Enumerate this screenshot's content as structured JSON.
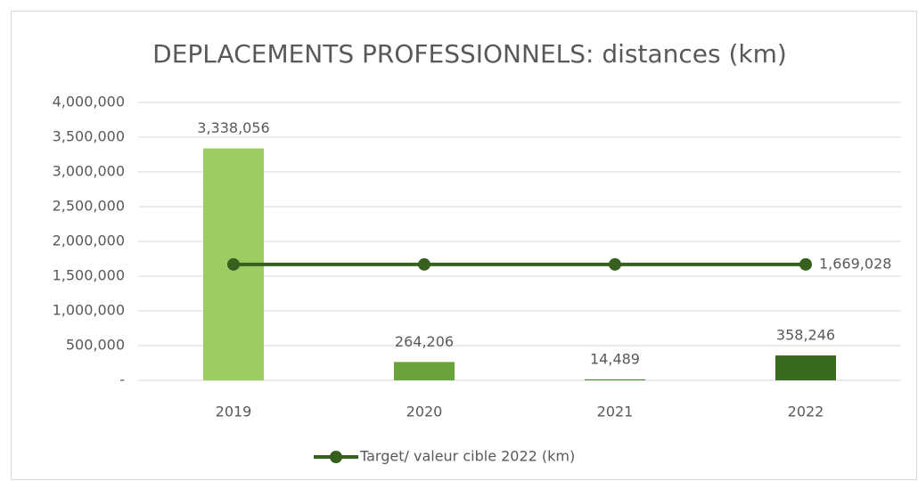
{
  "chart_data": {
    "type": "bar",
    "title": "DEPLACEMENTS PROFESSIONNELS: distances (km)",
    "categories": [
      "2019",
      "2020",
      "2021",
      "2022"
    ],
    "values": [
      3338056,
      264206,
      14489,
      358246
    ],
    "value_labels": [
      "3,338,056",
      "264,206",
      "14,489",
      "358,246"
    ],
    "colors": [
      "#9dcc63",
      "#6aa23c",
      "#548235",
      "#386a1f"
    ],
    "ylim": [
      0,
      4000000
    ],
    "yticks": [
      {
        "value": 0,
        "label": "-"
      },
      {
        "value": 500000,
        "label": "500,000"
      },
      {
        "value": 1000000,
        "label": "1,000,000"
      },
      {
        "value": 1500000,
        "label": "1,500,000"
      },
      {
        "value": 2000000,
        "label": "2,000,000"
      },
      {
        "value": 2500000,
        "label": "2,500,000"
      },
      {
        "value": 3000000,
        "label": "3,000,000"
      },
      {
        "value": 3500000,
        "label": "3,500,000"
      },
      {
        "value": 4000000,
        "label": "4,000,000"
      }
    ],
    "grid": true,
    "legend": "bottom",
    "series": [
      {
        "name": "Target/ valeur cible 2022 (km)",
        "type": "line",
        "color": "#375f1e",
        "values": [
          1669028,
          1669028,
          1669028,
          1669028
        ],
        "value_labels": [
          null,
          null,
          null,
          "1,669,028"
        ]
      }
    ]
  }
}
